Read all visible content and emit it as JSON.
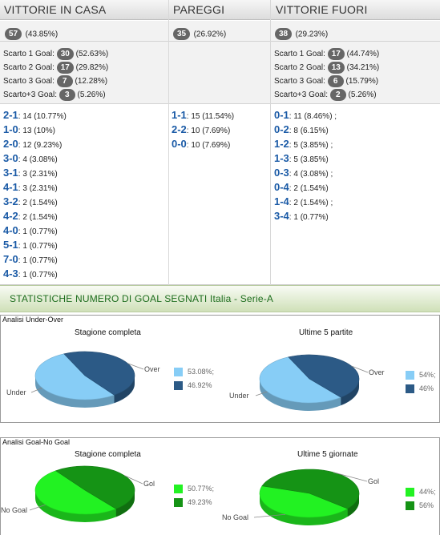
{
  "header": {
    "home": "VITTORIE IN CASA",
    "draw": "PAREGGI",
    "away": "VITTORIE FUORI"
  },
  "summary": {
    "home": {
      "count": "57",
      "pct": "(43.85%)"
    },
    "draw": {
      "count": "35",
      "pct": "(26.92%)"
    },
    "away": {
      "count": "38",
      "pct": "(29.23%)"
    }
  },
  "scarto": {
    "home": [
      {
        "label": "Scarto 1 Goal:",
        "count": "30",
        "pct": "(52.63%)"
      },
      {
        "label": "Scarto 2 Goal:",
        "count": "17",
        "pct": "(29.82%)"
      },
      {
        "label": "Scarto 3 Goal:",
        "count": "7",
        "pct": "(12.28%)"
      },
      {
        "label": "Scarto+3 Goal:",
        "count": "3",
        "pct": "(5.26%)"
      }
    ],
    "away": [
      {
        "label": "Scarto 1 Goal:",
        "count": "17",
        "pct": "(44.74%)"
      },
      {
        "label": "Scarto 2 Goal:",
        "count": "13",
        "pct": "(34.21%)"
      },
      {
        "label": "Scarto 3 Goal:",
        "count": "6",
        "pct": "(15.79%)"
      },
      {
        "label": "Scarto+3 Goal:",
        "count": "2",
        "pct": "(5.26%)"
      }
    ]
  },
  "scores": {
    "home": [
      {
        "score": "2-1",
        "text": ": 14 (10.77%)"
      },
      {
        "score": "1-0",
        "text": ": 13 (10%)"
      },
      {
        "score": "2-0",
        "text": ": 12 (9.23%)"
      },
      {
        "score": "3-0",
        "text": ": 4 (3.08%)"
      },
      {
        "score": "3-1",
        "text": ": 3 (2.31%)"
      },
      {
        "score": "4-1",
        "text": ": 3 (2.31%)"
      },
      {
        "score": "3-2",
        "text": ": 2 (1.54%)"
      },
      {
        "score": "4-2",
        "text": ": 2 (1.54%)"
      },
      {
        "score": "4-0",
        "text": ": 1 (0.77%)"
      },
      {
        "score": "5-1",
        "text": ": 1 (0.77%)"
      },
      {
        "score": "7-0",
        "text": ": 1 (0.77%)"
      },
      {
        "score": "4-3",
        "text": ": 1 (0.77%)"
      }
    ],
    "draw": [
      {
        "score": "1-1",
        "text": ": 15 (11.54%)"
      },
      {
        "score": "2-2",
        "text": ": 10 (7.69%)"
      },
      {
        "score": "0-0",
        "text": ": 10 (7.69%)"
      }
    ],
    "away": [
      {
        "score": "0-1",
        "text": ": 11 (8.46%) ;"
      },
      {
        "score": "0-2",
        "text": ": 8 (6.15%)"
      },
      {
        "score": "1-2",
        "text": ": 5 (3.85%) ;"
      },
      {
        "score": "1-3",
        "text": ": 5 (3.85%)"
      },
      {
        "score": "0-3",
        "text": ": 4 (3.08%) ;"
      },
      {
        "score": "0-4",
        "text": ": 2 (1.54%)"
      },
      {
        "score": "1-4",
        "text": ": 2 (1.54%) ;"
      },
      {
        "score": "3-4",
        "text": ": 1 (0.77%)"
      }
    ]
  },
  "section_title": "STATISTICHE NUMERO DI GOAL SEGNATI Italia - Serie-A",
  "colors": {
    "under": "#87cdf6",
    "over": "#2c5a86",
    "gol": "#159315",
    "nogol": "#22f222",
    "score_blue": "#1a5aa6",
    "pill": "#666666"
  },
  "chart_data": [
    {
      "type": "pie",
      "box_label": "Analisi Under-Over",
      "title": "Stagione completa",
      "slice_labels": [
        "Over",
        "Under"
      ],
      "series": [
        {
          "name": "Over",
          "value": 46.92,
          "legend": "46.92%"
        },
        {
          "name": "Under",
          "value": 53.08,
          "legend": "53.08%;"
        }
      ]
    },
    {
      "type": "pie",
      "box_label": "",
      "title": "Ultime 5 partite",
      "slice_labels": [
        "Over",
        "Under"
      ],
      "series": [
        {
          "name": "Over",
          "value": 46,
          "legend": "46%"
        },
        {
          "name": "Under",
          "value": 54,
          "legend": "54%;"
        }
      ]
    },
    {
      "type": "pie",
      "box_label": "Analisi Goal-No Goal",
      "title": "Stagione completa",
      "slice_labels": [
        "Gol",
        "No Goal"
      ],
      "series": [
        {
          "name": "Gol",
          "value": 49.23,
          "legend": "49.23%"
        },
        {
          "name": "No Goal",
          "value": 50.77,
          "legend": "50.77%;"
        }
      ]
    },
    {
      "type": "pie",
      "box_label": "",
      "title": "Ultime 5 giornate",
      "slice_labels": [
        "Gol",
        "No Goal"
      ],
      "series": [
        {
          "name": "Gol",
          "value": 56,
          "legend": "56%"
        },
        {
          "name": "No Goal",
          "value": 44,
          "legend": "44%;"
        }
      ]
    }
  ]
}
